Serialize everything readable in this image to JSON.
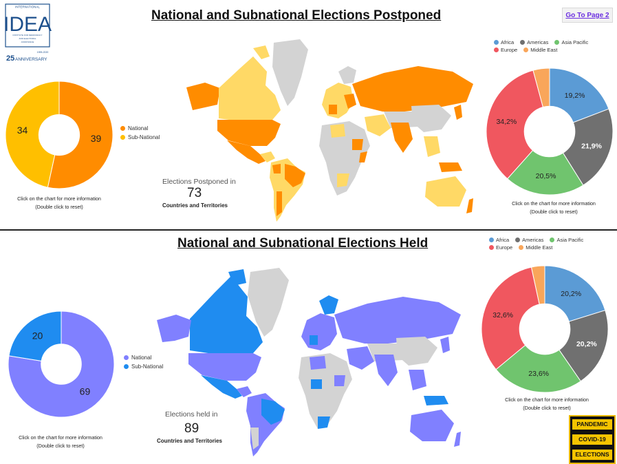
{
  "logo": {
    "brand": "IDEA",
    "tag_top": "INTERNATIONAL",
    "tag_lines": "INSTITUTE FOR DEMOCRACY AND ELECTORAL ASSISTANCE",
    "years": "1995-2020",
    "anniversary_num": "25",
    "anniversary_word": "ANNIVERSARY"
  },
  "nav": {
    "goto_label": "Go To Page 2"
  },
  "postponed": {
    "title": "National and Subnational Elections Postponed",
    "stat_label": "Elections Postponed in",
    "stat_value": "73",
    "stat_sub": "Countries and Territories",
    "hint_left_1": "Click on the chart for more information",
    "hint_left_2": "(Double click to reset)",
    "hint_right_1": "Click on the chart for more information",
    "hint_right_2": "(Double click to reset)"
  },
  "held": {
    "title": "National and Subnational Elections Held",
    "stat_label": "Elections held in",
    "stat_value": "89",
    "stat_sub": "Countries and Territories",
    "hint_left_1": "Click on the chart for more information",
    "hint_left_2": "(Double click to reset)",
    "hint_right_1": "Click on the chart for more information",
    "hint_right_2": "(Double click to reset)"
  },
  "region_legend": [
    "Africa",
    "Americas",
    "Asia Pacific",
    "Europe",
    "Middle East"
  ],
  "region_colors": [
    "#5b9bd5",
    "#707070",
    "#70c46e",
    "#f0575f",
    "#f9a65a"
  ],
  "badge": {
    "line1": "PANDEMIC",
    "line2": "COVID-19",
    "line3": "ELECTIONS"
  },
  "chart_data": [
    {
      "type": "pie",
      "id": "postponed-type",
      "categories": [
        "National",
        "Sub-National"
      ],
      "values": [
        39,
        34
      ],
      "colors": [
        "#ff8c00",
        "#ffbf00"
      ],
      "legend": "right"
    },
    {
      "type": "pie",
      "id": "postponed-region",
      "categories": [
        "Africa",
        "Americas",
        "Asia Pacific",
        "Europe",
        "Middle East"
      ],
      "values": [
        19.2,
        21.9,
        20.5,
        34.2,
        4.2
      ],
      "labels": [
        "19,2%",
        "21,9%",
        "20,5%",
        "34,2%",
        ""
      ],
      "colors": [
        "#5b9bd5",
        "#707070",
        "#70c46e",
        "#f0575f",
        "#f9a65a"
      ],
      "legend": "top"
    },
    {
      "type": "pie",
      "id": "held-type",
      "categories": [
        "National",
        "Sub-National"
      ],
      "values": [
        69,
        20
      ],
      "colors": [
        "#8080ff",
        "#1f8cf0"
      ],
      "legend": "right"
    },
    {
      "type": "pie",
      "id": "held-region",
      "categories": [
        "Africa",
        "Americas",
        "Asia Pacific",
        "Europe",
        "Middle East"
      ],
      "values": [
        20.2,
        20.2,
        23.6,
        32.6,
        3.4
      ],
      "labels": [
        "20,2%",
        "20,2%",
        "23,6%",
        "32,6%",
        ""
      ],
      "colors": [
        "#5b9bd5",
        "#707070",
        "#70c46e",
        "#f0575f",
        "#f9a65a"
      ],
      "legend": "top"
    }
  ]
}
